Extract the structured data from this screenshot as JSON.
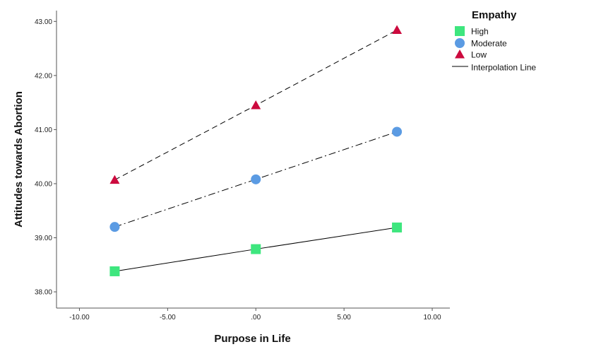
{
  "chart_data": {
    "type": "line",
    "xlabel": "Purpose in Life",
    "ylabel": "Attitudes towards Abortion",
    "xlim": [
      -11.3,
      11.0
    ],
    "ylim": [
      37.7,
      43.2
    ],
    "x_ticks": [
      -10,
      -5,
      0,
      5,
      10
    ],
    "x_tick_labels": [
      "-10.00",
      "-5.00",
      ".00",
      "5.00",
      "10.00"
    ],
    "y_ticks": [
      38,
      39,
      40,
      41,
      42,
      43
    ],
    "y_tick_labels": [
      "38.00",
      "39.00",
      "40.00",
      "41.00",
      "42.00",
      "43.00"
    ],
    "grid": false,
    "legend": {
      "title": "Empathy",
      "position": "right",
      "entries": [
        "High",
        "Moderate",
        "Low"
      ],
      "interpolation_label": "Interpolation Line"
    },
    "series": [
      {
        "name": "High",
        "marker": "square",
        "color": "#3EE67E",
        "line": "solid",
        "x": [
          -8.0,
          0.0,
          8.0
        ],
        "y": [
          38.38,
          38.79,
          39.19
        ]
      },
      {
        "name": "Moderate",
        "marker": "circle",
        "color": "#5B9BE3",
        "line": "dashdot",
        "x": [
          -8.0,
          0.0,
          8.0
        ],
        "y": [
          39.2,
          40.08,
          40.96
        ]
      },
      {
        "name": "Low",
        "marker": "triangle",
        "color": "#CC0A3E",
        "line": "dashed",
        "x": [
          -8.0,
          0.0,
          8.0
        ],
        "y": [
          40.07,
          41.45,
          42.84
        ]
      }
    ]
  }
}
